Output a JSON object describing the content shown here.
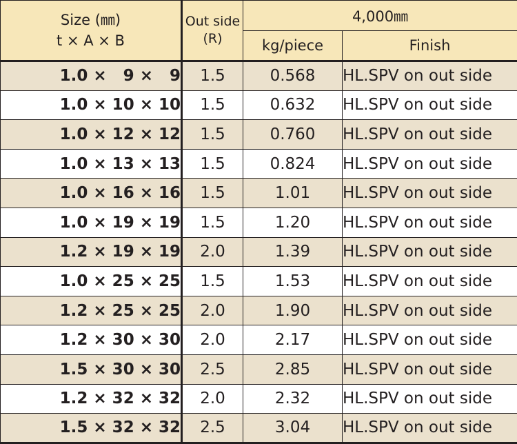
{
  "header": {
    "size_line1": "Size (㎜)",
    "size_line2": "t × A × B",
    "outside_line1": "Out side",
    "outside_line2": "(R)",
    "length": "4,000㎜",
    "kg": "kg/piece",
    "finish": "Finish"
  },
  "rows": [
    {
      "size": "1.0 ×   9 ×   9",
      "r": "1.5",
      "kg": "0.568",
      "finish": "HL.SPV on out side"
    },
    {
      "size": "1.0 × 10 × 10",
      "r": "1.5",
      "kg": "0.632",
      "finish": "HL.SPV on out side"
    },
    {
      "size": "1.0 × 12 × 12",
      "r": "1.5",
      "kg": "0.760",
      "finish": "HL.SPV on out side"
    },
    {
      "size": "1.0 × 13 × 13",
      "r": "1.5",
      "kg": "0.824",
      "finish": "HL.SPV on out side"
    },
    {
      "size": "1.0 × 16 × 16",
      "r": "1.5",
      "kg": "1.01",
      "finish": "HL.SPV on out side"
    },
    {
      "size": "1.0 × 19 × 19",
      "r": "1.5",
      "kg": "1.20",
      "finish": "HL.SPV on out side"
    },
    {
      "size": "1.2 × 19 × 19",
      "r": "2.0",
      "kg": "1.39",
      "finish": "HL.SPV on out side"
    },
    {
      "size": "1.0 × 25 × 25",
      "r": "1.5",
      "kg": "1.53",
      "finish": "HL.SPV on out side"
    },
    {
      "size": "1.2 × 25 × 25",
      "r": "2.0",
      "kg": "1.90",
      "finish": "HL.SPV on out side"
    },
    {
      "size": "1.2 × 30 × 30",
      "r": "2.0",
      "kg": "2.17",
      "finish": "HL.SPV on out side"
    },
    {
      "size": "1.5 × 30 × 30",
      "r": "2.5",
      "kg": "2.85",
      "finish": "HL.SPV on out side"
    },
    {
      "size": "1.2 × 32 × 32",
      "r": "2.0",
      "kg": "2.32",
      "finish": "HL.SPV on out side"
    },
    {
      "size": "1.5 × 32 × 32",
      "r": "2.5",
      "kg": "3.04",
      "finish": "HL.SPV on out side"
    }
  ],
  "colors": {
    "header_bg": "#f7e7b9",
    "shaded_row_bg": "#ebe1cd",
    "plain_row_bg": "#ffffff",
    "rule": "#231f20"
  }
}
